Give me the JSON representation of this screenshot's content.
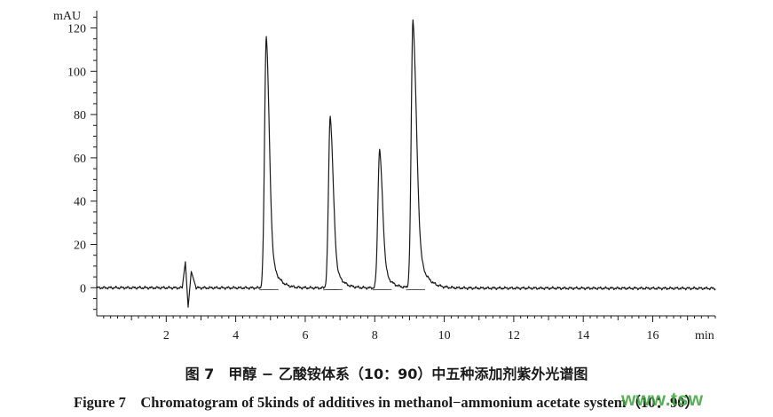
{
  "chart_data": {
    "type": "line",
    "ylabel": "mAU",
    "xlabel": "min",
    "xlim": [
      0,
      17.8
    ],
    "ylim": [
      -13,
      128
    ],
    "x_ticks": [
      2,
      4,
      6,
      8,
      10,
      12,
      14,
      16
    ],
    "y_ticks": [
      0,
      20,
      40,
      60,
      80,
      100,
      120
    ],
    "x_tick_labels": [
      "2",
      "4",
      "6",
      "8",
      "10",
      "12",
      "14",
      "16"
    ],
    "y_tick_labels": [
      "0",
      "20",
      "40",
      "60",
      "80",
      "100",
      "120"
    ],
    "peaks": [
      {
        "rt": 4.88,
        "height": 116.5
      },
      {
        "rt": 6.72,
        "height": 79.5
      },
      {
        "rt": 8.14,
        "height": 64.0
      },
      {
        "rt": 9.1,
        "height": 124.0
      }
    ],
    "solvent_disturbance": [
      {
        "x": 2.45,
        "y": -1.5
      },
      {
        "x": 2.55,
        "y": 12.0
      },
      {
        "x": 2.63,
        "y": -9.0
      },
      {
        "x": 2.72,
        "y": 7.5
      },
      {
        "x": 2.85,
        "y": 0.5
      }
    ],
    "series_color": "#1a1a1a"
  },
  "captions": {
    "cn": "图 7　甲醇 − 乙酸铵体系（10：90）中五种添加剂紫外光谱图",
    "en": "Figure 7　Chromatogram of 5kinds of additives in methanol−ammonium acetate system（10：90）"
  },
  "watermark": "www.tsw"
}
